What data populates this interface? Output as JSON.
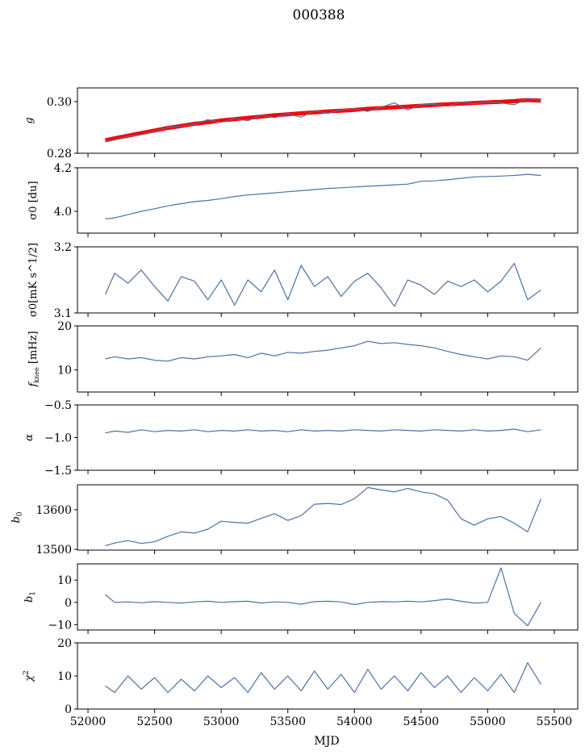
{
  "chart_data": {
    "type": "line",
    "title": "000388",
    "xlabel": "MJD",
    "xlim": [
      51921,
      55676
    ],
    "xticks": [
      52000,
      52500,
      53000,
      53500,
      54000,
      54500,
      55000,
      55500
    ],
    "xtick_labels": [
      "52000",
      "52500",
      "53000",
      "53500",
      "54000",
      "54500",
      "55000",
      "55500"
    ],
    "x": [
      52130,
      52200,
      52300,
      52400,
      52500,
      52600,
      52700,
      52800,
      52900,
      53000,
      53100,
      53200,
      53300,
      53400,
      53500,
      53600,
      53700,
      53800,
      53900,
      54000,
      54100,
      54200,
      54300,
      54400,
      54500,
      54600,
      54700,
      54800,
      54900,
      55000,
      55100,
      55200,
      55300,
      55400
    ],
    "colors": {
      "data": "#4c72a4",
      "model": "#ff0000"
    },
    "panels": [
      {
        "ylabel": "g",
        "ylim": [
          0.28,
          0.3053
        ],
        "yticks": [
          0.28,
          0.3
        ],
        "ytick_labels": [
          "0.28",
          "0.30"
        ],
        "series": [
          {
            "name": "model",
            "color": "#ff0000",
            "values": [
              0.285,
              0.2858,
              0.2868,
              0.2878,
              0.2888,
              0.2898,
              0.2906,
              0.2914,
              0.292,
              0.2927,
              0.2932,
              0.2937,
              0.2942,
              0.2947,
              0.2951,
              0.2955,
              0.2958,
              0.2962,
              0.2965,
              0.2968,
              0.2972,
              0.2975,
              0.2978,
              0.2981,
              0.2984,
              0.2987,
              0.299,
              0.2992,
              0.2995,
              0.2997,
              0.2999,
              0.3002,
              0.3006,
              0.3004
            ]
          },
          {
            "name": "data",
            "color": "#4c72a4",
            "values": [
              0.2845,
              0.2852,
              0.2866,
              0.2872,
              0.2885,
              0.29,
              0.2905,
              0.2912,
              0.293,
              0.292,
              0.2935,
              0.2926,
              0.2948,
              0.2938,
              0.2952,
              0.294,
              0.2965,
              0.2955,
              0.2968,
              0.2972,
              0.2962,
              0.2978,
              0.2995,
              0.2968,
              0.2988,
              0.299,
              0.2982,
              0.2998,
              0.2992,
              0.3,
              0.2995,
              0.2988,
              0.3012,
              0.3003
            ]
          }
        ]
      },
      {
        "ylabel": "σ0 [du]",
        "ylim": [
          3.9,
          4.2
        ],
        "yticks": [
          4.0,
          4.2
        ],
        "ytick_labels": [
          "4.0",
          "4.2"
        ],
        "series": [
          {
            "name": "data",
            "color": "#4c72a4",
            "values": [
              3.965,
              3.97,
              3.985,
              4.0,
              4.012,
              4.025,
              4.035,
              4.045,
              4.05,
              4.058,
              4.068,
              4.075,
              4.08,
              4.085,
              4.09,
              4.095,
              4.1,
              4.105,
              4.108,
              4.112,
              4.115,
              4.118,
              4.122,
              4.125,
              4.138,
              4.14,
              4.145,
              4.152,
              4.158,
              4.16,
              4.162,
              4.165,
              4.17,
              4.165
            ]
          }
        ]
      },
      {
        "ylabel": "σ0[mK s^1/2]",
        "ylim": [
          3.1,
          3.2
        ],
        "yticks": [
          3.1,
          3.2
        ],
        "ytick_labels": [
          "3.1",
          "3.2"
        ],
        "series": [
          {
            "name": "data",
            "color": "#4c72a4",
            "values": [
              3.128,
              3.16,
              3.145,
              3.165,
              3.14,
              3.118,
              3.155,
              3.148,
              3.12,
              3.15,
              3.112,
              3.15,
              3.132,
              3.165,
              3.12,
              3.172,
              3.14,
              3.155,
              3.125,
              3.148,
              3.16,
              3.138,
              3.11,
              3.15,
              3.142,
              3.128,
              3.148,
              3.14,
              3.15,
              3.132,
              3.148,
              3.175,
              3.12,
              3.135
            ]
          }
        ]
      },
      {
        "ylabel": "fknee [mHz]",
        "ylim": [
          5,
          20
        ],
        "yticks": [
          10,
          20
        ],
        "ytick_labels": [
          "10",
          "20"
        ],
        "series": [
          {
            "name": "data",
            "color": "#4c72a4",
            "values": [
              12.5,
              13.0,
              12.5,
              12.8,
              12.2,
              12.0,
              12.8,
              12.5,
              13.0,
              13.2,
              13.5,
              12.8,
              13.8,
              13.2,
              14.0,
              13.8,
              14.2,
              14.5,
              15.0,
              15.5,
              16.5,
              16.0,
              16.2,
              15.8,
              15.5,
              15.0,
              14.2,
              13.5,
              13.0,
              12.5,
              13.2,
              13.0,
              12.2,
              15.0
            ]
          }
        ]
      },
      {
        "ylabel": "α",
        "ylim": [
          -1.5,
          -0.5
        ],
        "yticks": [
          -1.5,
          -1.0,
          -0.5
        ],
        "ytick_labels": [
          "−1.5",
          "−1.0",
          "−0.5"
        ],
        "series": [
          {
            "name": "data",
            "color": "#4c72a4",
            "values": [
              -0.93,
              -0.9,
              -0.92,
              -0.88,
              -0.91,
              -0.89,
              -0.9,
              -0.88,
              -0.91,
              -0.89,
              -0.9,
              -0.88,
              -0.9,
              -0.89,
              -0.91,
              -0.88,
              -0.9,
              -0.89,
              -0.9,
              -0.88,
              -0.89,
              -0.9,
              -0.88,
              -0.89,
              -0.9,
              -0.88,
              -0.89,
              -0.9,
              -0.88,
              -0.9,
              -0.89,
              -0.87,
              -0.91,
              -0.88
            ]
          }
        ]
      },
      {
        "ylabel": "b0",
        "ylim": [
          13498,
          13663
        ],
        "yticks": [
          13500,
          13600
        ],
        "ytick_labels": [
          "13500",
          "13600"
        ],
        "series": [
          {
            "name": "data",
            "color": "#4c72a4",
            "values": [
              13509,
              13516,
              13522,
              13515,
              13519,
              13533,
              13544,
              13541,
              13551,
              13571,
              13568,
              13566,
              13578,
              13590,
              13573,
              13585,
              13614,
              13616,
              13613,
              13628,
              13656,
              13650,
              13645,
              13654,
              13645,
              13640,
              13624,
              13577,
              13561,
              13577,
              13583,
              13566,
              13544,
              13627
            ]
          }
        ]
      },
      {
        "ylabel": "b1",
        "ylim": [
          -12.4,
          17.3
        ],
        "yticks": [
          -10,
          0,
          10
        ],
        "ytick_labels": [
          "−10",
          "0",
          "10"
        ],
        "series": [
          {
            "name": "data",
            "color": "#4c72a4",
            "values": [
              3.5,
              0.0,
              0.2,
              -0.2,
              0.3,
              0.0,
              -0.3,
              0.2,
              0.5,
              0.0,
              0.3,
              0.5,
              -0.3,
              0.2,
              0.0,
              -0.8,
              0.3,
              0.5,
              0.2,
              -1.0,
              0.0,
              0.3,
              0.2,
              0.5,
              0.2,
              0.8,
              1.5,
              0.5,
              -0.3,
              0.0,
              15.5,
              -5.0,
              -10.5,
              0.0
            ]
          }
        ]
      },
      {
        "ylabel": "χ2",
        "ylim": [
          0,
          20
        ],
        "yticks": [
          0,
          10,
          20
        ],
        "ytick_labels": [
          "0",
          "10",
          "20"
        ],
        "series": [
          {
            "name": "data",
            "color": "#4c72a4",
            "values": [
              7.0,
              5.0,
              10.0,
              6.0,
              9.5,
              5.0,
              9.0,
              5.5,
              10.0,
              6.5,
              9.5,
              5.0,
              11.0,
              6.0,
              10.0,
              5.5,
              11.5,
              6.0,
              10.5,
              5.0,
              12.0,
              6.0,
              10.0,
              5.5,
              11.0,
              6.5,
              10.0,
              5.0,
              9.5,
              5.5,
              10.5,
              5.0,
              14.0,
              7.5
            ]
          }
        ]
      }
    ]
  }
}
